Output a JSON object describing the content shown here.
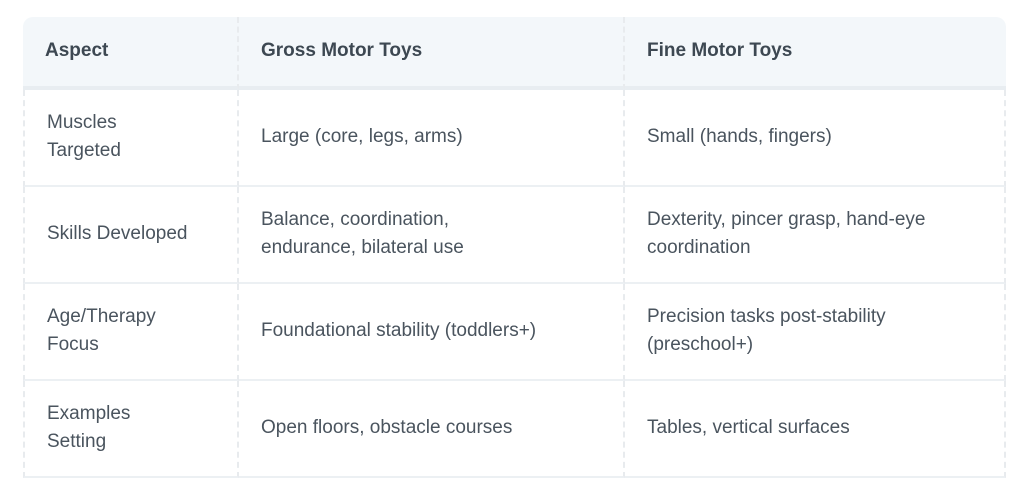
{
  "table": {
    "columns": {
      "aspect": "Aspect",
      "gross": "Gross Motor Toys",
      "fine": "Fine Motor Toys"
    },
    "rows": [
      {
        "aspect": "Muscles\nTargeted",
        "gross": "Large (core, legs, arms)",
        "fine": "Small (hands, fingers)"
      },
      {
        "aspect": "Skills Developed",
        "gross": "Balance, coordination,\nendurance, bilateral use",
        "fine": "Dexterity, pincer grasp, hand-eye\ncoordination"
      },
      {
        "aspect": "Age/Therapy\nFocus",
        "gross": "Foundational stability (toddlers+)",
        "fine": "Precision tasks post-stability\n(preschool+)"
      },
      {
        "aspect": "Examples\nSetting",
        "gross": "Open floors, obstacle courses",
        "fine": "Tables, vertical surfaces"
      }
    ],
    "colors": {
      "header_bg": "#f3f7fa",
      "header_text": "#3d4852",
      "body_text": "#4a545e",
      "row_border": "#ecf0f3",
      "dashed_border": "#e8ebee",
      "header_bottom_border": "#e8edf1",
      "page_bg": "#ffffff"
    }
  }
}
